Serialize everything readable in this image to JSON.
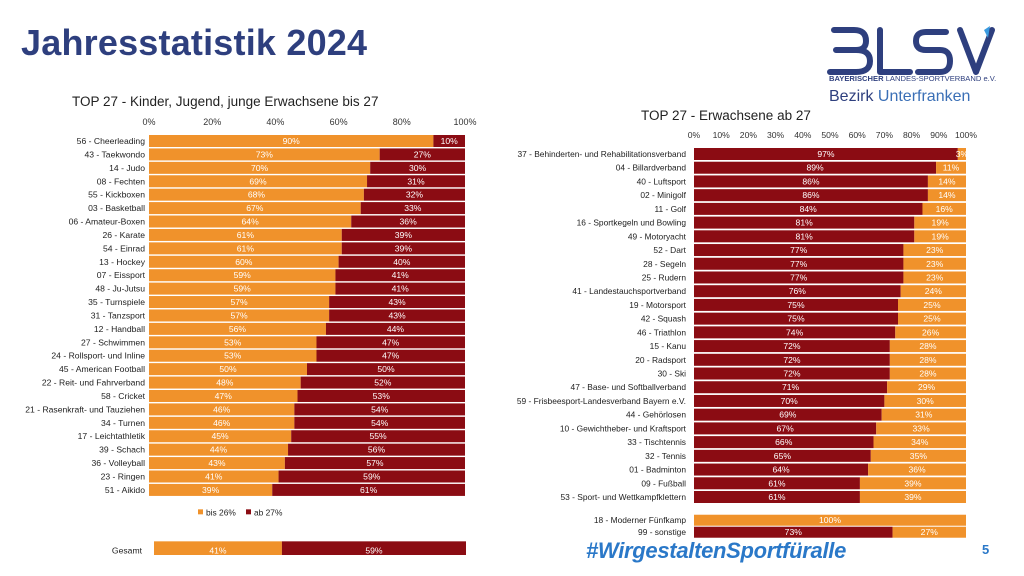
{
  "page_title": "Jahresstatistik 2024",
  "logo": {
    "text": "BLSV",
    "subtitle_bold": "BAYERISCHER",
    "subtitle_rest": " LANDES-SPORTVERBAND e.V.",
    "bezirk_word": "Bezirk",
    "bezirk_region": "Unterfranken"
  },
  "hashtag": "#WirgestaltenSportfüralle",
  "page_number": "5",
  "colors": {
    "orange": "#f0922b",
    "darkred": "#8b0c13",
    "navy": "#2e3f7e",
    "blue": "#2a78c8"
  },
  "chart_data": [
    {
      "type": "bar",
      "stacked": true,
      "orientation": "horizontal",
      "title": "TOP 27 - Kinder, Jugend, junge Erwachsene bis 27",
      "x_ticks": [
        "0%",
        "20%",
        "40%",
        "60%",
        "80%",
        "100%"
      ],
      "xlim": [
        0,
        100
      ],
      "legend": {
        "position": "bottom",
        "labels": [
          "bis 26%",
          "ab 27%"
        ]
      },
      "categories": [
        "56 - Cheerleading",
        "43 - Taekwondo",
        "14 - Judo",
        "08 - Fechten",
        "55 - Kickboxen",
        "03 - Basketball",
        "06 - Amateur-Boxen",
        "26 - Karate",
        "54 - Einrad",
        "13 - Hockey",
        "07 - Eissport",
        "48 - Ju-Jutsu",
        "35 - Turnspiele",
        "31 - Tanzsport",
        "12 - Handball",
        "27 - Schwimmen",
        "24 - Rollsport- und Inline",
        "45 - American Football",
        "22 - Reit- und Fahrverband",
        "58 - Cricket",
        "21 - Rasenkraft- und Tauziehen",
        "34 - Turnen",
        "17 - Leichtathletik",
        "39 - Schach",
        "36 - Volleyball",
        "23 - Ringen",
        "51 - Aikido"
      ],
      "series": [
        {
          "name": "bis 26%",
          "values": [
            90,
            73,
            70,
            69,
            68,
            67,
            64,
            61,
            61,
            60,
            59,
            59,
            57,
            57,
            56,
            53,
            53,
            50,
            48,
            47,
            46,
            46,
            45,
            44,
            43,
            41,
            39
          ]
        },
        {
          "name": "ab 27%",
          "values": [
            10,
            27,
            30,
            31,
            32,
            33,
            36,
            39,
            39,
            40,
            41,
            41,
            43,
            43,
            44,
            47,
            47,
            50,
            52,
            53,
            54,
            54,
            55,
            56,
            57,
            59,
            61
          ]
        }
      ],
      "total": {
        "label": "Gesamt",
        "values": [
          41,
          59
        ]
      }
    },
    {
      "type": "bar",
      "stacked": true,
      "orientation": "horizontal",
      "title": "TOP 27 - Erwachsene ab 27",
      "x_ticks": [
        "0%",
        "10%",
        "20%",
        "30%",
        "40%",
        "50%",
        "60%",
        "70%",
        "80%",
        "90%",
        "100%"
      ],
      "xlim": [
        0,
        100
      ],
      "categories": [
        "37 - Behinderten- und Rehabilitationsverband",
        "04 - Billardverband",
        "40 - Luftsport",
        "02 - Minigolf",
        "11 - Golf",
        "16 - Sportkegeln und Bowling",
        "49 - Motoryacht",
        "52 - Dart",
        "28 - Segeln",
        "25 - Rudern",
        "41 - Landestauchsportverband",
        "19 - Motorsport",
        "42 - Squash",
        "46 - Triathlon",
        "15 - Kanu",
        "20 - Radsport",
        "30 - Ski",
        "47 - Base- und Softballverband",
        "59 - Frisbeesport-Landesverband Bayern e.V.",
        "44 - Gehörlosen",
        "10 - Gewichtheber- und Kraftsport",
        "33 - Tischtennis",
        "32 - Tennis",
        "01 - Badminton",
        "09 - Fußball",
        "53 - Sport- und Wettkampfklettern"
      ],
      "series": [
        {
          "name": "ab 27%",
          "values": [
            97,
            89,
            86,
            86,
            84,
            81,
            81,
            77,
            77,
            77,
            76,
            75,
            75,
            74,
            72,
            72,
            72,
            71,
            70,
            69,
            67,
            66,
            65,
            64,
            61,
            61
          ]
        },
        {
          "name": "bis 26%",
          "values": [
            3,
            11,
            14,
            14,
            16,
            19,
            19,
            23,
            23,
            23,
            24,
            25,
            25,
            26,
            28,
            28,
            28,
            29,
            30,
            31,
            33,
            34,
            35,
            36,
            39,
            39
          ]
        }
      ],
      "extra": [
        {
          "label": "18 - Moderner Fünfkamp",
          "values": [
            null,
            100
          ],
          "labels": [
            "",
            "100%"
          ]
        },
        {
          "label": "99 - sonstige",
          "values": [
            73,
            27
          ],
          "labels": [
            "73%",
            "27%"
          ]
        }
      ]
    }
  ]
}
